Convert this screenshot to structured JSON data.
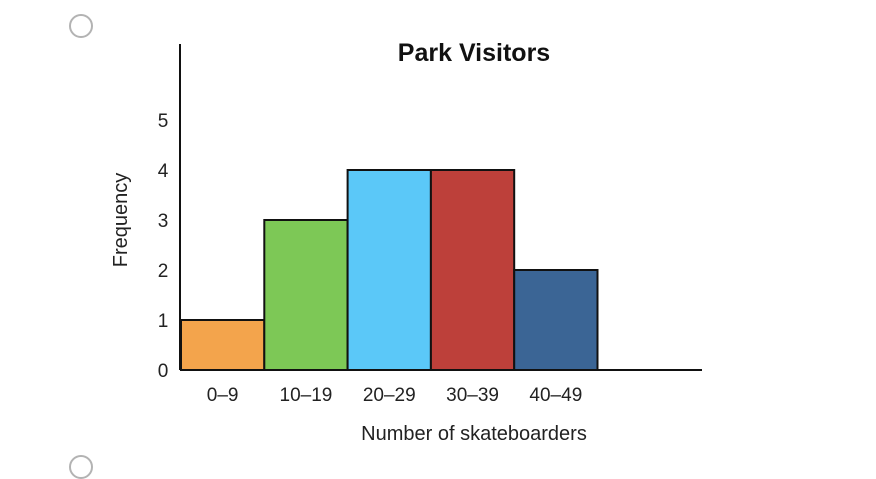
{
  "chart_data": {
    "type": "bar",
    "title": "Park Visitors",
    "xlabel": "Number of skateboarders",
    "ylabel": "Frequency",
    "categories": [
      "0–9",
      "10–19",
      "20–29",
      "30–39",
      "40–49"
    ],
    "values": [
      1,
      3,
      4,
      4,
      2
    ],
    "colors": [
      "#f3a44c",
      "#7dc856",
      "#5bc8f8",
      "#bd403a",
      "#3b6595"
    ],
    "ylim": [
      0,
      6
    ],
    "yticks": [
      0,
      1,
      2,
      3,
      4,
      5
    ],
    "grid": false,
    "legend": "none"
  },
  "options": {
    "radio_icon": "radio-unselected-icon"
  }
}
